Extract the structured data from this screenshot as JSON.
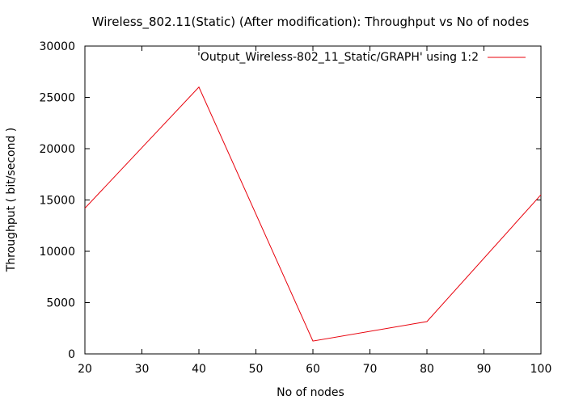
{
  "chart_data": {
    "type": "line",
    "title": "Wireless_802.11(Static) (After modification): Throughput vs No of nodes",
    "xlabel": "No of nodes",
    "ylabel": "Throughput ( bit/second )",
    "xlim": [
      20,
      100
    ],
    "ylim": [
      0,
      30000
    ],
    "xticks": [
      20,
      30,
      40,
      50,
      60,
      70,
      80,
      90,
      100
    ],
    "yticks": [
      0,
      5000,
      10000,
      15000,
      20000,
      25000,
      30000
    ],
    "grid": false,
    "legend_position": "top-right",
    "series": [
      {
        "name": "'Output_Wireless-802_11_Static/GRAPH' using 1:2",
        "color": "#e8000b",
        "x": [
          20,
          40,
          60,
          80,
          100
        ],
        "y": [
          14200,
          26000,
          1250,
          3150,
          15500
        ]
      }
    ]
  }
}
